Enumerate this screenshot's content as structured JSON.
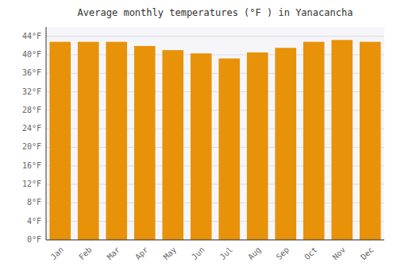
{
  "chart_data": {
    "type": "bar",
    "title": "Average monthly temperatures (°F ) in Yanacancha",
    "categories": [
      "Jan",
      "Feb",
      "Mar",
      "Apr",
      "May",
      "Jun",
      "Jul",
      "Aug",
      "Sep",
      "Oct",
      "Nov",
      "Dec"
    ],
    "values": [
      42.8,
      42.8,
      42.8,
      41.9,
      41.0,
      40.3,
      39.2,
      40.5,
      41.5,
      42.8,
      43.2,
      42.8
    ],
    "color": "#E8920A",
    "ylim": [
      0,
      46
    ],
    "yticks": [
      {
        "value": 0,
        "label": "0°F"
      },
      {
        "value": 4,
        "label": "4°F"
      },
      {
        "value": 8,
        "label": "8°F"
      },
      {
        "value": 12,
        "label": "12°F"
      },
      {
        "value": 16,
        "label": "16°F"
      },
      {
        "value": 20,
        "label": "20°F"
      },
      {
        "value": 24,
        "label": "24°F"
      },
      {
        "value": 28,
        "label": "28°F"
      },
      {
        "value": 32,
        "label": "32°F"
      },
      {
        "value": 36,
        "label": "36°F"
      },
      {
        "value": 40,
        "label": "40°F"
      },
      {
        "value": 44,
        "label": "44°F"
      }
    ],
    "grid": true
  }
}
